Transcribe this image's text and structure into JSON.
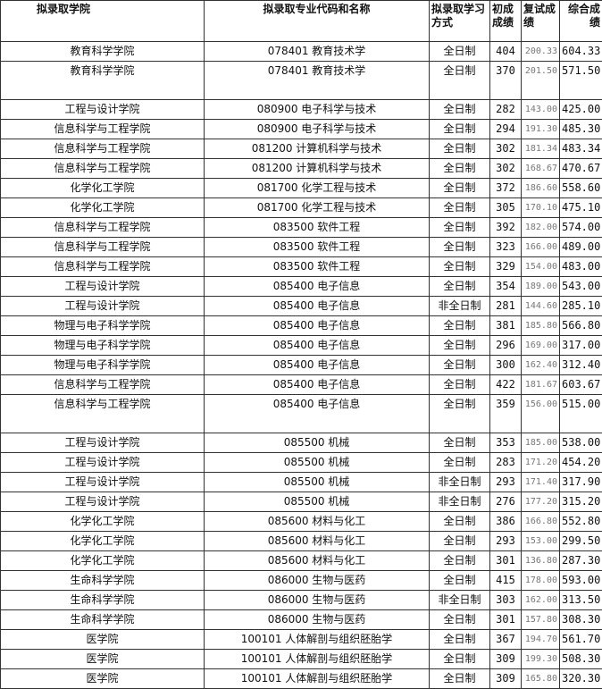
{
  "headers": [
    "拟录取学院",
    "拟录取专业代码和名称",
    "拟录取学习方式",
    "初成成绩",
    "复试成绩",
    "综合成绩"
  ],
  "rows": [
    [
      "教育科学学院",
      "078401 教育技术学",
      "全日制",
      "404",
      "200.33",
      "604.33"
    ],
    [
      "教育科学学院",
      "078401 教育技术学",
      "全日制",
      "370",
      "201.50",
      "571.50"
    ],
    [
      "工程与设计学院",
      "080900 电子科学与技术",
      "全日制",
      "282",
      "143.00",
      "425.00"
    ],
    [
      "信息科学与工程学院",
      "080900 电子科学与技术",
      "全日制",
      "294",
      "191.30",
      "485.30"
    ],
    [
      "信息科学与工程学院",
      "081200 计算机科学与技术",
      "全日制",
      "302",
      "181.34",
      "483.34"
    ],
    [
      "信息科学与工程学院",
      "081200 计算机科学与技术",
      "全日制",
      "302",
      "168.67",
      "470.67"
    ],
    [
      "化学化工学院",
      "081700 化学工程与技术",
      "全日制",
      "372",
      "186.60",
      "558.60"
    ],
    [
      "化学化工学院",
      "081700 化学工程与技术",
      "全日制",
      "305",
      "170.10",
      "475.10"
    ],
    [
      "信息科学与工程学院",
      "083500 软件工程",
      "全日制",
      "392",
      "182.00",
      "574.00"
    ],
    [
      "信息科学与工程学院",
      "083500 软件工程",
      "全日制",
      "323",
      "166.00",
      "489.00"
    ],
    [
      "信息科学与工程学院",
      "083500 软件工程",
      "全日制",
      "329",
      "154.00",
      "483.00"
    ],
    [
      "工程与设计学院",
      "085400 电子信息",
      "全日制",
      "354",
      "189.00",
      "543.00"
    ],
    [
      "工程与设计学院",
      "085400 电子信息",
      "非全日制",
      "281",
      "144.60",
      "285.10"
    ],
    [
      "物理与电子科学学院",
      "085400 电子信息",
      "全日制",
      "381",
      "185.80",
      "566.80"
    ],
    [
      "物理与电子科学学院",
      "085400 电子信息",
      "全日制",
      "296",
      "169.00",
      "317.00"
    ],
    [
      "物理与电子科学学院",
      "085400 电子信息",
      "全日制",
      "300",
      "162.40",
      "312.40"
    ],
    [
      "信息科学与工程学院",
      "085400 电子信息",
      "全日制",
      "422",
      "181.67",
      "603.67"
    ],
    [
      "信息科学与工程学院",
      "085400 电子信息",
      "全日制",
      "359",
      "156.00",
      "515.00"
    ],
    [
      "工程与设计学院",
      "085500 机械",
      "全日制",
      "353",
      "185.00",
      "538.00"
    ],
    [
      "工程与设计学院",
      "085500 机械",
      "全日制",
      "283",
      "171.20",
      "454.20"
    ],
    [
      "工程与设计学院",
      "085500 机械",
      "非全日制",
      "293",
      "171.40",
      "317.90"
    ],
    [
      "工程与设计学院",
      "085500 机械",
      "非全日制",
      "276",
      "177.20",
      "315.20"
    ],
    [
      "化学化工学院",
      "085600 材料与化工",
      "全日制",
      "386",
      "166.80",
      "552.80"
    ],
    [
      "化学化工学院",
      "085600 材料与化工",
      "全日制",
      "293",
      "153.00",
      "299.50"
    ],
    [
      "化学化工学院",
      "085600 材料与化工",
      "全日制",
      "301",
      "136.80",
      "287.30"
    ],
    [
      "生命科学学院",
      "086000 生物与医药",
      "全日制",
      "415",
      "178.00",
      "593.00"
    ],
    [
      "生命科学学院",
      "086000 生物与医药",
      "非全日制",
      "303",
      "162.00",
      "313.50"
    ],
    [
      "生命科学学院",
      "086000 生物与医药",
      "全日制",
      "301",
      "157.80",
      "308.30"
    ],
    [
      "医学院",
      "100101 人体解剖与组织胚胎学",
      "全日制",
      "367",
      "194.70",
      "561.70"
    ],
    [
      "医学院",
      "100101 人体解剖与组织胚胎学",
      "全日制",
      "309",
      "199.30",
      "508.30"
    ],
    [
      "医学院",
      "100101 人体解剖与组织胚胎学",
      "全日制",
      "309",
      "165.80",
      "320.30"
    ]
  ]
}
